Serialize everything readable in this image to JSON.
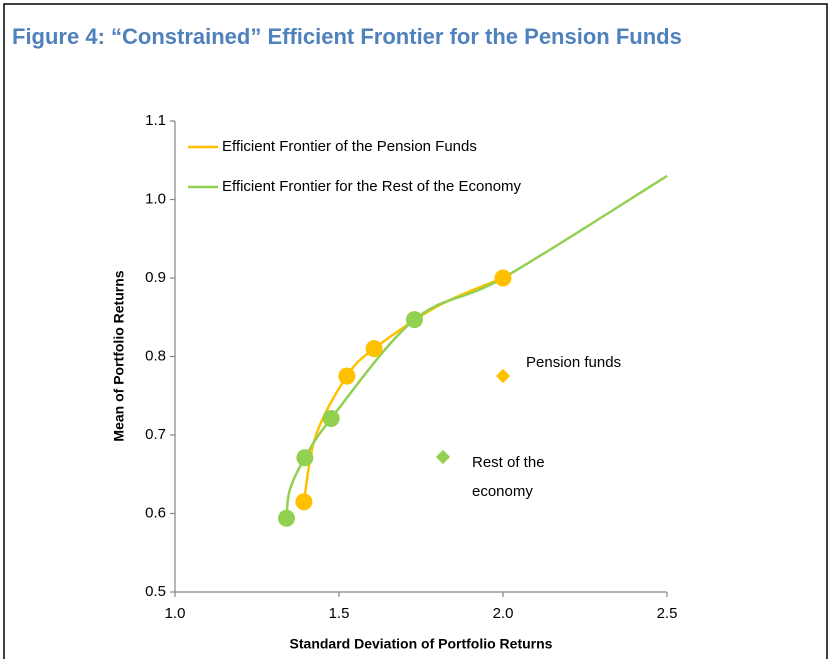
{
  "chart_data": {
    "type": "line",
    "title": "Figure 4: “Constrained” Efficient Frontier for the Pension Funds",
    "x_label": "Standard Deviation of Portfolio Returns",
    "y_label": "Mean of Portfolio Returns",
    "xlim": [
      1.0,
      2.5
    ],
    "xticks": [
      {
        "value": 1.0,
        "label": "1.0"
      },
      1.5,
      {
        "value": 2.0,
        "label": "2.0"
      },
      2.5
    ],
    "ylim": [
      0.5,
      1.1
    ],
    "yticks": [
      0.5,
      0.6,
      0.7,
      0.8,
      0.9,
      {
        "value": 1.0,
        "label": "1.0"
      },
      1.1
    ],
    "series": [
      {
        "name": "Efficient Frontier of the Pension Funds",
        "color": "#ffc000",
        "kind": "line",
        "x": [
          1.393,
          1.43,
          1.524,
          1.607,
          1.8,
          2.0
        ],
        "values": [
          0.615,
          0.7,
          0.775,
          0.81,
          0.864,
          0.9
        ]
      },
      {
        "name": "Efficient Frontier for the Rest of the Economy",
        "color": "#92d050",
        "kind": "line",
        "x": [
          1.34,
          1.35,
          1.396,
          1.476,
          1.73,
          2.0,
          2.5
        ],
        "values": [
          0.594,
          0.63,
          0.671,
          0.721,
          0.847,
          0.9,
          1.03
        ]
      },
      {
        "name": "Pension funds",
        "color": "#ffc000",
        "kind": "scatter",
        "x": [
          1.393,
          1.524,
          1.607,
          2.0
        ],
        "values": [
          0.615,
          0.775,
          0.81,
          0.9
        ]
      },
      {
        "name": "Rest of the economy",
        "color": "#92d050",
        "kind": "scatter",
        "x": [
          1.34,
          1.396,
          1.476,
          1.73
        ],
        "values": [
          0.594,
          0.671,
          0.721,
          0.847
        ]
      }
    ]
  }
}
